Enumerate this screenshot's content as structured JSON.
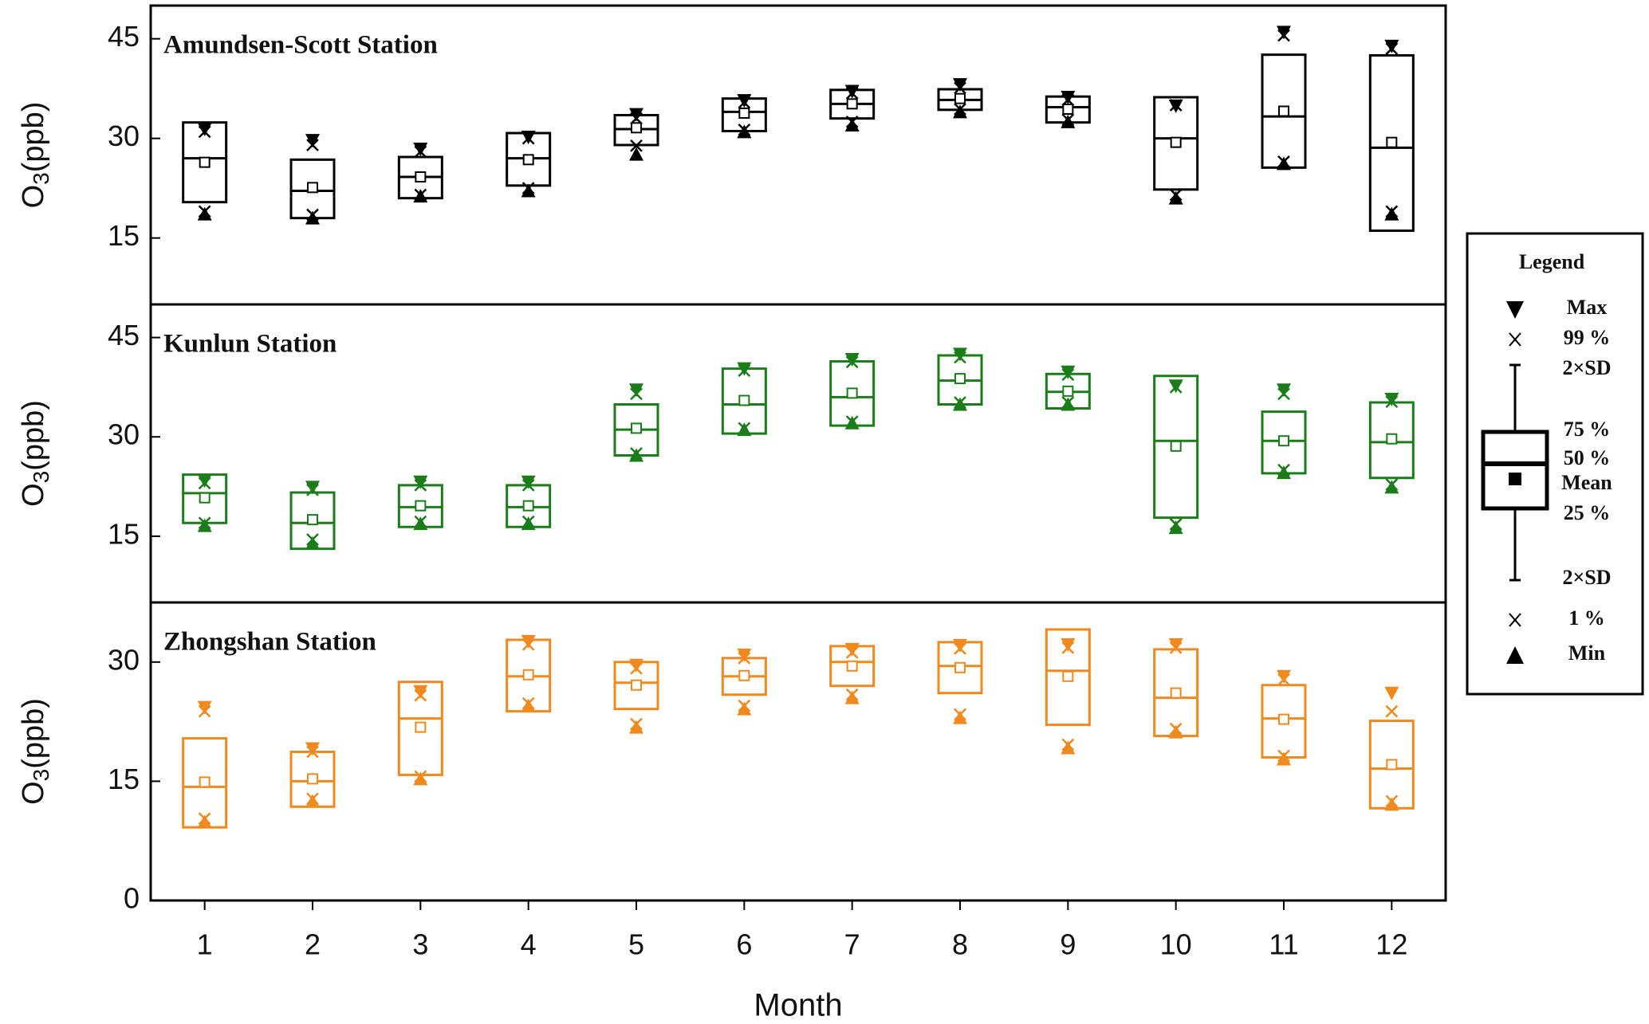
{
  "chart_data": [
    {
      "type": "box",
      "title": "Amundsen-Scott Station",
      "ylabel": "O",
      "ylabel_sub": "3",
      "ylabel_unit": "(ppb)",
      "color": "#000000",
      "x": [
        1,
        2,
        3,
        4,
        5,
        6,
        7,
        8,
        9,
        10,
        11,
        12
      ],
      "xlim": [
        0.5,
        12.5
      ],
      "ylim": [
        5,
        50
      ],
      "yticks": [
        15,
        30,
        45
      ],
      "min": [
        18.6,
        18,
        21.3,
        22.1,
        27.6,
        31,
        32,
        34,
        32.5,
        21,
        26.2,
        18.6
      ],
      "p1": [
        19,
        18.5,
        21.5,
        22.5,
        28.9,
        31.3,
        32.5,
        34.4,
        32.8,
        21.5,
        26.5,
        19
      ],
      "q1": [
        20.4,
        18,
        21,
        22.9,
        29,
        31.1,
        33,
        34.3,
        32.4,
        22.3,
        25.6,
        16.1
      ],
      "median": [
        27,
        22.1,
        24.2,
        27,
        31.4,
        34,
        35.2,
        35.8,
        34.7,
        30,
        33.3,
        28.6
      ],
      "q3": [
        32.4,
        26.8,
        27.2,
        30.8,
        33.5,
        36,
        37.3,
        37.4,
        36.3,
        36.2,
        42.6,
        42.5
      ],
      "p99": [
        31,
        29,
        28,
        30,
        33,
        35.4,
        36.8,
        37.6,
        35.8,
        35,
        45.5,
        43.5
      ],
      "max": [
        31.4,
        29.7,
        28.4,
        30.2,
        33.6,
        35.7,
        37.1,
        38.1,
        36.2,
        34.9,
        46,
        43.9
      ],
      "mean": [
        26.4,
        22.6,
        24.2,
        26.8,
        31.6,
        33.8,
        35.2,
        36,
        34.4,
        29.4,
        34.1,
        29.4
      ]
    },
    {
      "type": "box",
      "title": "Kunlun Station",
      "ylabel": "O",
      "ylabel_sub": "3",
      "ylabel_unit": "(ppb)",
      "color": "#1a7d1a",
      "x": [
        1,
        2,
        3,
        4,
        5,
        6,
        7,
        8,
        9,
        10,
        11,
        12
      ],
      "xlim": [
        0.5,
        12.5
      ],
      "ylim": [
        5,
        50
      ],
      "yticks": [
        15,
        30,
        45
      ],
      "min": [
        16.6,
        13.9,
        16.9,
        16.9,
        27.2,
        31.1,
        32.1,
        34.9,
        34.9,
        16.3,
        24.6,
        22.4
      ],
      "p1": [
        17,
        14.5,
        17.2,
        17.2,
        27.5,
        31.3,
        32.3,
        35.2,
        35.2,
        16.8,
        25,
        22.8
      ],
      "q1": [
        17,
        13.1,
        16.4,
        16.4,
        27.2,
        30.5,
        31.7,
        34.9,
        34.3,
        17.8,
        24.5,
        23.8
      ],
      "median": [
        21.5,
        17,
        19.4,
        19.4,
        31.1,
        34.9,
        36,
        38.5,
        36.8,
        29.4,
        29.4,
        29.2
      ],
      "q3": [
        24.3,
        21.6,
        22.7,
        22.7,
        34.9,
        40.3,
        41.4,
        42.3,
        39.5,
        39.2,
        33.8,
        35.2
      ],
      "p99": [
        23,
        22,
        22.7,
        22.7,
        36.5,
        40,
        41.3,
        42,
        39.4,
        37.5,
        36.5,
        35.3
      ],
      "max": [
        23.4,
        22.4,
        23.2,
        23.2,
        37.1,
        40.3,
        41.7,
        42.5,
        39.8,
        37.7,
        37.1,
        35.7
      ],
      "mean": [
        20.8,
        17.5,
        19.6,
        19.6,
        31.3,
        35.5,
        36.6,
        38.8,
        36.9,
        28.6,
        29.4,
        29.7
      ]
    },
    {
      "type": "box",
      "title": "Zhongshan Station",
      "ylabel": "O",
      "ylabel_sub": "3",
      "ylabel_unit": "(ppb)",
      "color": "#f0891e",
      "x": [
        1,
        2,
        3,
        4,
        5,
        6,
        7,
        8,
        9,
        10,
        11,
        12
      ],
      "xlim": [
        0.5,
        12.5
      ],
      "ylim": [
        0,
        37.5
      ],
      "yticks": [
        0,
        15,
        30
      ],
      "xticks": [
        1,
        2,
        3,
        4,
        5,
        6,
        7,
        8,
        9,
        10,
        11,
        12
      ],
      "xlabel": "Month",
      "min": [
        9.9,
        12.5,
        15.3,
        24.5,
        21.8,
        24.1,
        25.5,
        23,
        19.2,
        21.2,
        17.8,
        12.1
      ],
      "p1": [
        10.3,
        12.8,
        15.6,
        24.8,
        22.2,
        24.5,
        25.9,
        23.4,
        19.6,
        21.6,
        18.2,
        12.5
      ],
      "q1": [
        9.2,
        11.8,
        15.8,
        23.8,
        24.1,
        25.9,
        27,
        26.1,
        22.1,
        20.7,
        18,
        11.6
      ],
      "median": [
        14.3,
        15,
        22.9,
        28.2,
        27.4,
        28.2,
        30,
        29.5,
        28.9,
        25.5,
        22.9,
        16.6
      ],
      "q3": [
        20.4,
        18.7,
        27.5,
        32.8,
        30,
        30.5,
        32,
        32.5,
        34.1,
        31.6,
        27.1,
        22.6
      ],
      "p99": [
        23.8,
        18.7,
        25.8,
        32.2,
        29.2,
        30.5,
        31.2,
        31.7,
        31.8,
        31.8,
        27.8,
        23.8
      ],
      "max": [
        24.3,
        19.1,
        26.3,
        32.6,
        29.6,
        30.9,
        31.6,
        32.1,
        32.2,
        32.2,
        28.2,
        26.1
      ],
      "mean": [
        14.9,
        15.3,
        21.8,
        28.4,
        27.1,
        28.3,
        29.5,
        29.3,
        28.2,
        26.1,
        22.8,
        17.1
      ]
    }
  ],
  "legend_key": {
    "title": "Legend",
    "items": [
      "Max",
      "99 %",
      "2×SD",
      "75 %",
      "50 %",
      "Mean",
      "25 %",
      "2×SD",
      "1 %",
      "Min"
    ]
  }
}
